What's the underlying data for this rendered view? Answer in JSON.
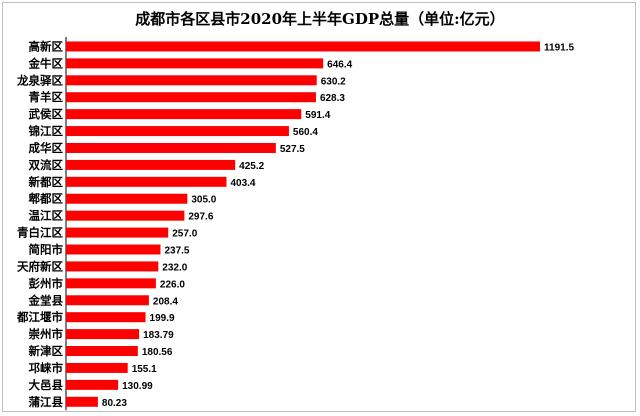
{
  "chart_data": {
    "type": "bar",
    "orientation": "horizontal",
    "title": "成都市各区县市2020年上半年GDP总量（单位:亿元）",
    "categories": [
      "高新区",
      "金牛区",
      "龙泉驿区",
      "青羊区",
      "武侯区",
      "锦江区",
      "成华区",
      "双流区",
      "新都区",
      "郫都区",
      "温江区",
      "青白江区",
      "简阳市",
      "天府新区",
      "彭州市",
      "金堂县",
      "都江堰市",
      "崇州市",
      "新津区",
      "邛崃市",
      "大邑县",
      "蒲江县"
    ],
    "values": [
      1191.5,
      646.4,
      630.2,
      628.3,
      591.4,
      560.4,
      527.5,
      425.2,
      403.4,
      305.0,
      297.6,
      257.0,
      237.5,
      232.0,
      226.0,
      208.4,
      199.9,
      183.79,
      180.56,
      155.1,
      130.99,
      80.23
    ],
    "value_labels": [
      "1191.5",
      "646.4",
      "630.2",
      "628.3",
      "591.4",
      "560.4",
      "527.5",
      "425.2",
      "403.4",
      "305.0",
      "297.6",
      "257.0",
      "237.5",
      "232.0",
      "226.0",
      "208.4",
      "199.9",
      "183.79",
      "180.56",
      "155.1",
      "130.99",
      "80.23"
    ],
    "xlim": [
      0,
      1191.5
    ],
    "bar_color": "#ff0000",
    "grid": false,
    "legend": "none"
  }
}
